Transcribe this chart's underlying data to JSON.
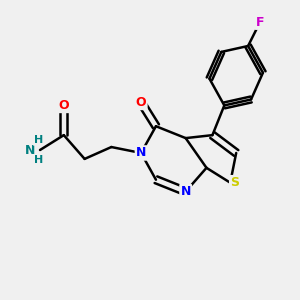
{
  "bg_color": "#f0f0f0",
  "bond_color": "#000000",
  "double_bond_color": "#000000",
  "atom_colors": {
    "N": "#0000ff",
    "O": "#ff0000",
    "S": "#cccc00",
    "F": "#cc00cc",
    "C": "#000000",
    "H": "#008080",
    "NH2_N": "#008080"
  },
  "font_size": 9
}
